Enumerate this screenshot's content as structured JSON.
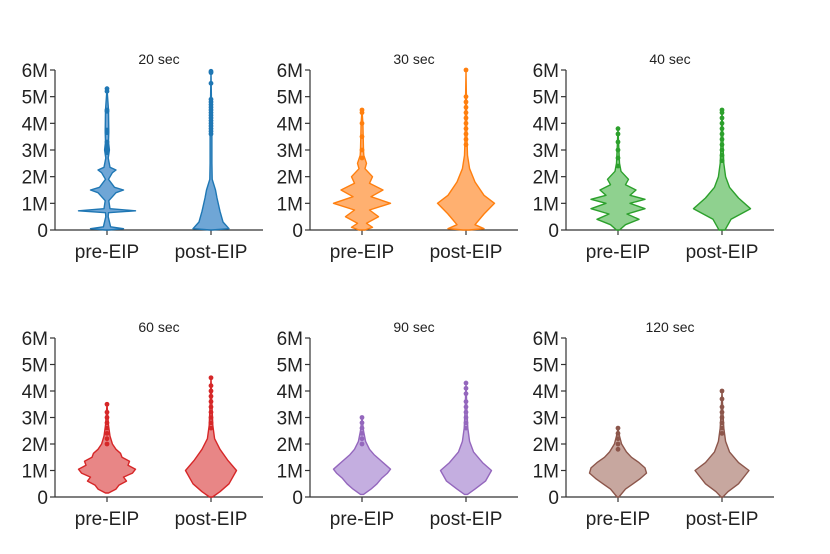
{
  "figure": {
    "type": "violin-grid"
  },
  "chart_data": [
    {
      "type": "violin",
      "title": "20 sec",
      "color": "#1f77b4",
      "fill": "#6fa6d6",
      "categories": [
        "pre-EIP",
        "post-EIP"
      ],
      "ylim": [
        0,
        6000000
      ],
      "yticks": [
        "0",
        "1M",
        "2M",
        "3M",
        "4M",
        "5M",
        "6M"
      ],
      "series": [
        {
          "name": "pre-EIP",
          "profile": [
            [
              0,
              0.05
            ],
            [
              0.05,
              0.55
            ],
            [
              0.12,
              0.12
            ],
            [
              0.5,
              0.04
            ],
            [
              0.65,
              0.05
            ],
            [
              0.72,
              0.95
            ],
            [
              0.8,
              0.1
            ],
            [
              1.1,
              0.06
            ],
            [
              1.4,
              0.3
            ],
            [
              1.5,
              0.55
            ],
            [
              1.6,
              0.25
            ],
            [
              1.9,
              0.05
            ],
            [
              2.15,
              0.18
            ],
            [
              2.25,
              0.3
            ],
            [
              2.35,
              0.1
            ],
            [
              2.7,
              0.04
            ],
            [
              3.0,
              0.08
            ],
            [
              3.3,
              0.05
            ],
            [
              3.7,
              0.06
            ],
            [
              4.5,
              0.05
            ],
            [
              5.3,
              0.0
            ]
          ],
          "outliers": [
            2.9,
            3.0,
            3.15,
            3.3,
            3.65,
            3.75,
            4.45,
            4.5,
            5.2,
            5.3
          ]
        },
        {
          "name": "post-EIP",
          "profile": [
            [
              0,
              0.02
            ],
            [
              0.05,
              0.6
            ],
            [
              0.3,
              0.4
            ],
            [
              0.7,
              0.3
            ],
            [
              1.2,
              0.2
            ],
            [
              1.5,
              0.15
            ],
            [
              1.9,
              0.04
            ],
            [
              2.5,
              0.03
            ],
            [
              3.5,
              0.03
            ],
            [
              4.5,
              0.02
            ],
            [
              5.95,
              0.0
            ]
          ],
          "outliers": [
            3.6,
            3.7,
            3.8,
            3.9,
            4.0,
            4.1,
            4.2,
            4.3,
            4.4,
            4.5,
            4.6,
            4.7,
            4.8,
            4.9,
            5.5,
            5.9,
            5.95
          ]
        }
      ]
    },
    {
      "type": "violin",
      "title": "30 sec",
      "color": "#ff7f0e",
      "fill": "#ffb070",
      "categories": [
        "pre-EIP",
        "post-EIP"
      ],
      "ylim": [
        0,
        6000000
      ],
      "yticks": [
        "0",
        "1M",
        "2M",
        "3M",
        "4M",
        "5M",
        "6M"
      ],
      "series": [
        {
          "name": "pre-EIP",
          "profile": [
            [
              0,
              0.1
            ],
            [
              0.1,
              0.35
            ],
            [
              0.25,
              0.15
            ],
            [
              0.5,
              0.55
            ],
            [
              0.75,
              0.25
            ],
            [
              1.0,
              0.95
            ],
            [
              1.25,
              0.3
            ],
            [
              1.5,
              0.7
            ],
            [
              1.75,
              0.25
            ],
            [
              2.0,
              0.35
            ],
            [
              2.3,
              0.1
            ],
            [
              2.5,
              0.15
            ],
            [
              2.8,
              0.06
            ],
            [
              3.0,
              0.05
            ],
            [
              3.5,
              0.04
            ],
            [
              4.0,
              0.03
            ],
            [
              4.5,
              0.0
            ]
          ],
          "outliers": [
            2.7,
            3.0,
            3.5,
            4.0,
            4.4,
            4.5
          ]
        },
        {
          "name": "post-EIP",
          "profile": [
            [
              0,
              0.1
            ],
            [
              0.05,
              0.6
            ],
            [
              0.2,
              0.3
            ],
            [
              0.6,
              0.6
            ],
            [
              1.0,
              0.95
            ],
            [
              1.3,
              0.6
            ],
            [
              1.8,
              0.3
            ],
            [
              2.3,
              0.12
            ],
            [
              2.8,
              0.05
            ],
            [
              3.5,
              0.03
            ],
            [
              4.5,
              0.02
            ],
            [
              6.0,
              0.0
            ]
          ],
          "outliers": [
            3.2,
            3.4,
            3.6,
            3.8,
            4.0,
            4.2,
            4.4,
            4.6,
            4.8,
            5.0,
            6.0
          ]
        }
      ]
    },
    {
      "type": "violin",
      "title": "40 sec",
      "color": "#2ca02c",
      "fill": "#8fd18f",
      "categories": [
        "pre-EIP",
        "post-EIP"
      ],
      "ylim": [
        0,
        6000000
      ],
      "yticks": [
        "0",
        "1M",
        "2M",
        "3M",
        "4M",
        "5M",
        "6M"
      ],
      "series": [
        {
          "name": "pre-EIP",
          "profile": [
            [
              0,
              0.05
            ],
            [
              0.2,
              0.25
            ],
            [
              0.4,
              0.7
            ],
            [
              0.6,
              0.3
            ],
            [
              0.8,
              0.9
            ],
            [
              1.0,
              0.4
            ],
            [
              1.15,
              0.9
            ],
            [
              1.3,
              0.4
            ],
            [
              1.5,
              0.6
            ],
            [
              1.7,
              0.25
            ],
            [
              1.9,
              0.35
            ],
            [
              2.2,
              0.1
            ],
            [
              2.5,
              0.05
            ],
            [
              3.0,
              0.03
            ],
            [
              3.8,
              0.0
            ]
          ],
          "outliers": [
            2.4,
            2.7,
            3.0,
            3.3,
            3.6,
            3.8
          ]
        },
        {
          "name": "post-EIP",
          "profile": [
            [
              0,
              0.1
            ],
            [
              0.1,
              0.15
            ],
            [
              0.4,
              0.3
            ],
            [
              0.8,
              0.95
            ],
            [
              1.2,
              0.55
            ],
            [
              1.6,
              0.25
            ],
            [
              2.0,
              0.12
            ],
            [
              2.5,
              0.06
            ],
            [
              3.0,
              0.04
            ],
            [
              3.8,
              0.02
            ],
            [
              4.5,
              0.0
            ]
          ],
          "outliers": [
            2.6,
            2.8,
            3.0,
            3.2,
            3.4,
            3.6,
            3.8,
            4.0,
            4.2,
            4.4,
            4.5
          ]
        }
      ]
    },
    {
      "type": "violin",
      "title": "60 sec",
      "color": "#d62728",
      "fill": "#e88686",
      "categories": [
        "pre-EIP",
        "post-EIP"
      ],
      "ylim": [
        0,
        6000000
      ],
      "yticks": [
        "0",
        "1M",
        "2M",
        "3M",
        "4M",
        "5M",
        "6M"
      ],
      "series": [
        {
          "name": "pre-EIP",
          "profile": [
            [
              0.15,
              0.05
            ],
            [
              0.3,
              0.3
            ],
            [
              0.45,
              0.4
            ],
            [
              0.6,
              0.65
            ],
            [
              0.75,
              0.55
            ],
            [
              0.9,
              0.85
            ],
            [
              1.05,
              0.95
            ],
            [
              1.2,
              0.7
            ],
            [
              1.35,
              0.75
            ],
            [
              1.5,
              0.5
            ],
            [
              1.65,
              0.45
            ],
            [
              1.8,
              0.3
            ],
            [
              2.0,
              0.18
            ],
            [
              2.3,
              0.1
            ],
            [
              2.7,
              0.05
            ],
            [
              3.5,
              0.0
            ]
          ],
          "outliers": [
            2.0,
            2.2,
            2.4,
            2.6,
            2.8,
            3.0,
            3.2,
            3.5
          ]
        },
        {
          "name": "post-EIP",
          "profile": [
            [
              0,
              0.05
            ],
            [
              0.2,
              0.3
            ],
            [
              0.5,
              0.6
            ],
            [
              1.0,
              0.85
            ],
            [
              1.4,
              0.55
            ],
            [
              1.8,
              0.3
            ],
            [
              2.2,
              0.12
            ],
            [
              2.7,
              0.06
            ],
            [
              3.5,
              0.03
            ],
            [
              4.5,
              0.0
            ]
          ],
          "outliers": [
            2.6,
            2.8,
            3.0,
            3.2,
            3.4,
            3.6,
            3.8,
            4.0,
            4.2,
            4.5
          ]
        }
      ]
    },
    {
      "type": "violin",
      "title": "90 sec",
      "color": "#9467bd",
      "fill": "#c4aee0",
      "categories": [
        "pre-EIP",
        "post-EIP"
      ],
      "ylim": [
        0,
        6000000
      ],
      "yticks": [
        "0",
        "1M",
        "2M",
        "3M",
        "4M",
        "5M",
        "6M"
      ],
      "series": [
        {
          "name": "pre-EIP",
          "profile": [
            [
              0.1,
              0.05
            ],
            [
              0.3,
              0.3
            ],
            [
              0.5,
              0.5
            ],
            [
              0.7,
              0.65
            ],
            [
              0.9,
              0.85
            ],
            [
              1.05,
              0.95
            ],
            [
              1.2,
              0.8
            ],
            [
              1.4,
              0.6
            ],
            [
              1.6,
              0.4
            ],
            [
              1.8,
              0.25
            ],
            [
              2.1,
              0.12
            ],
            [
              2.5,
              0.05
            ],
            [
              3.0,
              0.0
            ]
          ],
          "outliers": [
            2.0,
            2.2,
            2.4,
            2.6,
            2.8,
            3.0
          ]
        },
        {
          "name": "post-EIP",
          "profile": [
            [
              0.1,
              0.05
            ],
            [
              0.3,
              0.3
            ],
            [
              0.6,
              0.65
            ],
            [
              1.0,
              0.85
            ],
            [
              1.3,
              0.55
            ],
            [
              1.7,
              0.25
            ],
            [
              2.1,
              0.12
            ],
            [
              2.6,
              0.06
            ],
            [
              3.3,
              0.03
            ],
            [
              4.3,
              0.0
            ]
          ],
          "outliers": [
            2.6,
            2.8,
            3.0,
            3.2,
            3.4,
            3.6,
            3.9,
            4.1,
            4.3
          ]
        }
      ]
    },
    {
      "type": "violin",
      "title": "120 sec",
      "color": "#8c564b",
      "fill": "#c7a79f",
      "categories": [
        "pre-EIP",
        "post-EIP"
      ],
      "ylim": [
        0,
        6000000
      ],
      "yticks": [
        "0",
        "1M",
        "2M",
        "3M",
        "4M",
        "5M",
        "6M"
      ],
      "series": [
        {
          "name": "pre-EIP",
          "profile": [
            [
              0,
              0.03
            ],
            [
              0.3,
              0.25
            ],
            [
              0.5,
              0.5
            ],
            [
              0.7,
              0.75
            ],
            [
              0.9,
              0.95
            ],
            [
              1.1,
              0.9
            ],
            [
              1.3,
              0.7
            ],
            [
              1.5,
              0.45
            ],
            [
              1.7,
              0.28
            ],
            [
              2.0,
              0.12
            ],
            [
              2.3,
              0.05
            ],
            [
              2.6,
              0.0
            ]
          ],
          "outliers": [
            1.8,
            2.0,
            2.2,
            2.4,
            2.6
          ]
        },
        {
          "name": "post-EIP",
          "profile": [
            [
              0,
              0.03
            ],
            [
              0.2,
              0.2
            ],
            [
              0.5,
              0.55
            ],
            [
              1.0,
              0.9
            ],
            [
              1.3,
              0.55
            ],
            [
              1.7,
              0.25
            ],
            [
              2.1,
              0.12
            ],
            [
              2.6,
              0.06
            ],
            [
              3.2,
              0.03
            ],
            [
              4.0,
              0.0
            ]
          ],
          "outliers": [
            2.4,
            2.6,
            2.8,
            3.0,
            3.2,
            3.4,
            3.7,
            4.0
          ]
        }
      ]
    }
  ]
}
